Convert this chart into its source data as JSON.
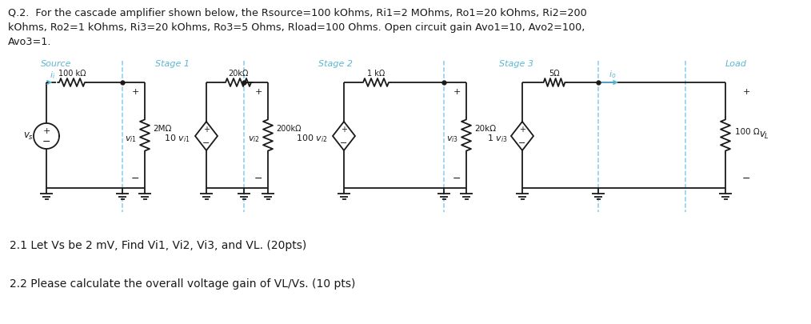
{
  "title_line1": "Q.2.  For the cascade amplifier shown below, the Rsource=100 kOhms, Ri1=2 MOhms, Ro1=20 kOhms, Ri2=200",
  "title_line2": "kOhms, Ro2=1 kOhms, Ri3=20 kOhms, Ro3=5 Ohms, Rload=100 Ohms. Open circuit gain Avo1=10, Avo2=100,",
  "title_line3": "Avo3=1.",
  "q21_text": "2.1 Let Vs be 2 mV, Find Vi1, Vi2, Vi3, and VL. (20pts)",
  "q22_text": "2.2 Please calculate the overall voltage gain of VL/Vs. (10 pts)",
  "stage_labels": [
    "Source",
    "Stage 1",
    "Stage 2",
    "Stage 3",
    "Load"
  ],
  "stage_label_color": "#5BB8D4",
  "bg_color": "#FFFFFF",
  "text_color": "#000000",
  "circuit_color": "#1a1a1a",
  "dashed_color": "#88CCEE"
}
